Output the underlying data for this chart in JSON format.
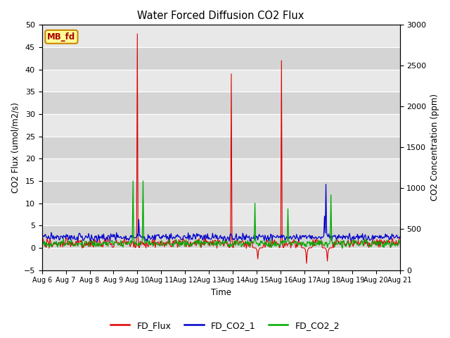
{
  "title": "Water Forced Diffusion CO2 Flux",
  "ylabel_left": "CO2 Flux (umol/m2/s)",
  "ylabel_right": "CO2 Concentration (ppm)",
  "xlabel": "Time",
  "ylim_left": [
    -5,
    50
  ],
  "ylim_right": [
    0,
    3000
  ],
  "yticks_left": [
    -5,
    0,
    5,
    10,
    15,
    20,
    25,
    30,
    35,
    40,
    45,
    50
  ],
  "yticks_right": [
    0,
    500,
    1000,
    1500,
    2000,
    2500,
    3000
  ],
  "xtick_labels": [
    "Aug 6",
    "Aug 7",
    "Aug 8",
    "Aug 9",
    "Aug 10",
    "Aug 11",
    "Aug 12",
    "Aug 13",
    "Aug 14",
    "Aug 15",
    "Aug 16",
    "Aug 17",
    "Aug 18",
    "Aug 19",
    "Aug 20",
    "Aug 21"
  ],
  "colors": {
    "flux": "#dd0000",
    "co2_1": "#0000cc",
    "co2_2": "#00aa00",
    "band_light": "#e8e8e8",
    "band_dark": "#d4d4d4",
    "mb_fd_bg": "#ffff99",
    "mb_fd_border": "#cc8800",
    "mb_fd_text": "#aa0000"
  },
  "mb_fd_label": "MB_fd",
  "legend_labels": [
    "FD_Flux",
    "FD_CO2_1",
    "FD_CO2_2"
  ],
  "n_points": 500,
  "seed": 42
}
